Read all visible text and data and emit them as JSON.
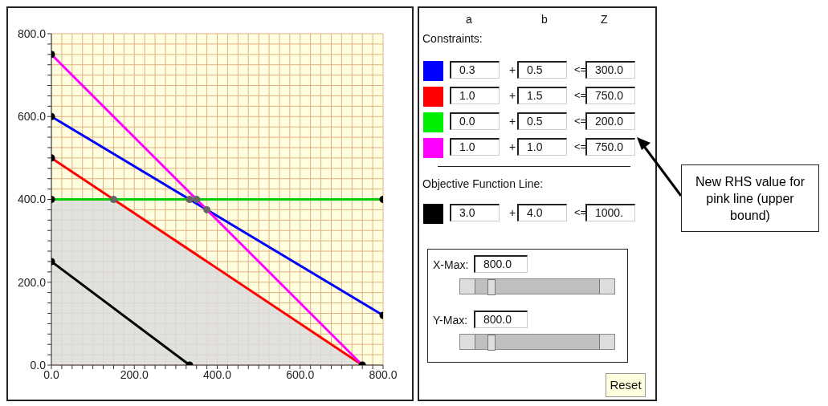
{
  "chart_data": [
    {
      "type": "line",
      "xlim": [
        0,
        800
      ],
      "ylim": [
        0,
        800
      ],
      "grid": true,
      "line_style": "solid",
      "xticks": [
        {
          "value": 0,
          "label": "0.0"
        },
        {
          "value": 25,
          "label": null
        },
        {
          "value": 50,
          "label": null
        },
        {
          "value": 75,
          "label": null
        },
        {
          "value": 100,
          "label": null
        },
        {
          "value": 125,
          "label": null
        },
        {
          "value": 150,
          "label": null
        },
        {
          "value": 175,
          "label": null
        },
        {
          "value": 200,
          "label": "200.0"
        },
        {
          "value": 225,
          "label": null
        },
        {
          "value": 250,
          "label": null
        },
        {
          "value": 275,
          "label": null
        },
        {
          "value": 300,
          "label": null
        },
        {
          "value": 325,
          "label": null
        },
        {
          "value": 350,
          "label": null
        },
        {
          "value": 375,
          "label": null
        },
        {
          "value": 400,
          "label": "400.0"
        },
        {
          "value": 425,
          "label": null
        },
        {
          "value": 450,
          "label": null
        },
        {
          "value": 475,
          "label": null
        },
        {
          "value": 500,
          "label": null
        },
        {
          "value": 525,
          "label": null
        },
        {
          "value": 550,
          "label": null
        },
        {
          "value": 575,
          "label": null
        },
        {
          "value": 600,
          "label": "600.0"
        },
        {
          "value": 625,
          "label": null
        },
        {
          "value": 650,
          "label": null
        },
        {
          "value": 675,
          "label": null
        },
        {
          "value": 700,
          "label": null
        },
        {
          "value": 725,
          "label": null
        },
        {
          "value": 750,
          "label": null
        },
        {
          "value": 775,
          "label": null
        },
        {
          "value": 800,
          "label": "800.0"
        }
      ],
      "yticks": [
        {
          "value": 0,
          "label": "0.0"
        },
        {
          "value": 25,
          "label": null
        },
        {
          "value": 50,
          "label": null
        },
        {
          "value": 75,
          "label": null
        },
        {
          "value": 100,
          "label": null
        },
        {
          "value": 125,
          "label": null
        },
        {
          "value": 150,
          "label": null
        },
        {
          "value": 175,
          "label": null
        },
        {
          "value": 200,
          "label": "200.0"
        },
        {
          "value": 225,
          "label": null
        },
        {
          "value": 250,
          "label": null
        },
        {
          "value": 275,
          "label": null
        },
        {
          "value": 300,
          "label": null
        },
        {
          "value": 325,
          "label": null
        },
        {
          "value": 350,
          "label": null
        },
        {
          "value": 375,
          "label": null
        },
        {
          "value": 400,
          "label": "400.0"
        },
        {
          "value": 425,
          "label": null
        },
        {
          "value": 450,
          "label": null
        },
        {
          "value": 475,
          "label": null
        },
        {
          "value": 500,
          "label": null
        },
        {
          "value": 525,
          "label": null
        },
        {
          "value": 550,
          "label": null
        },
        {
          "value": 575,
          "label": null
        },
        {
          "value": 600,
          "label": "600.0"
        },
        {
          "value": 625,
          "label": null
        },
        {
          "value": 650,
          "label": null
        },
        {
          "value": 675,
          "label": null
        },
        {
          "value": 700,
          "label": null
        },
        {
          "value": 725,
          "label": null
        },
        {
          "value": 750,
          "label": null
        },
        {
          "value": 775,
          "label": null
        },
        {
          "value": 800,
          "label": "800.0"
        }
      ],
      "series": [
        {
          "type": "area",
          "color": "#dcdcdc",
          "x": [
            0,
            150,
            750
          ],
          "values": [
            400,
            400,
            0
          ]
        },
        {
          "type": "line",
          "color": "#0000ff",
          "x": [
            0,
            800
          ],
          "values": [
            600,
            120
          ]
        },
        {
          "type": "line",
          "color": "#ff0000",
          "x": [
            0,
            750
          ],
          "values": [
            500,
            0
          ]
        },
        {
          "type": "line",
          "color": "#00cc00",
          "x": [
            0,
            800
          ],
          "values": [
            400,
            400
          ]
        },
        {
          "type": "line",
          "color": "#ff00ff",
          "x": [
            0,
            750
          ],
          "values": [
            750,
            0
          ]
        },
        {
          "type": "line",
          "color": "#000000",
          "x": [
            0,
            333.3
          ],
          "values": [
            250,
            0
          ]
        },
        {
          "type": "scatter",
          "color": "#000000",
          "marker": "circle",
          "x": [
            0,
            800,
            0,
            750,
            0,
            800,
            0,
            0,
            333.3
          ],
          "values": [
            600,
            120,
            500,
            0,
            400,
            400,
            750,
            250,
            0
          ]
        },
        {
          "type": "scatter",
          "color": "#666666",
          "marker": "circle",
          "x": [
            150,
            333.3,
            350,
            375
          ],
          "values": [
            400,
            400,
            400,
            375
          ]
        }
      ]
    },
    {
      "type": "other",
      "colors": [
        "#0000ff",
        "#ff0000",
        "#00ee00",
        "#ff00ff",
        "#000000"
      ],
      "annotations": [
        "a",
        "b",
        "Z",
        "Constraints:",
        "0.3",
        "0.5",
        "300.0",
        "1.0",
        "1.5",
        "750.0",
        "0.0",
        "0.5",
        "200.0",
        "1.0",
        "1.0",
        "750.0",
        "Objective Function Line:",
        "3.0",
        "4.0",
        "1000.",
        "X-Max:",
        "800.0",
        "Y-Max:",
        "800.0",
        "Reset",
        "New RHS value for pink line (upper bound)",
        "+",
        "<="
      ]
    }
  ]
}
